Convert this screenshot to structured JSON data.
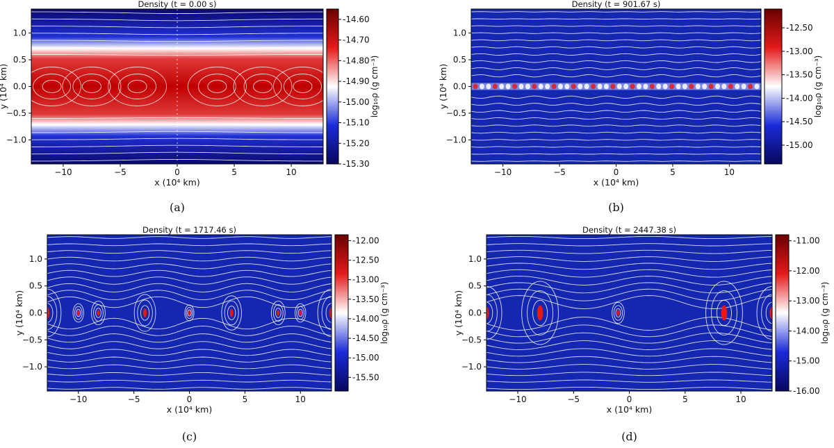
{
  "chart_data": [
    {
      "type": "heatmap",
      "caption": "(a)",
      "title": "Density (t = 0.00 s)",
      "xlabel": "x (10⁴ km)",
      "ylabel": "y (10⁴ km)",
      "colorbar_label": "log₁₀ρ (g cm⁻³)",
      "xlim": [
        -12.8,
        12.8
      ],
      "ylim": [
        -1.45,
        1.45
      ],
      "xticks": [
        "−10",
        "−5",
        "0",
        "5",
        "10"
      ],
      "xtick_values": [
        -10,
        -5,
        0,
        5,
        10
      ],
      "yticks": [
        "1.0",
        "0.5",
        "0.0",
        "−0.5",
        "−1.0"
      ],
      "ytick_values": [
        1.0,
        0.5,
        0.0,
        -0.5,
        -1.0
      ],
      "colorbar_range": [
        -15.3,
        -14.55
      ],
      "colorbar_ticks": [
        "-14.60",
        "-14.70",
        "-14.80",
        "-14.90",
        "-15.00",
        "-15.10",
        "-15.20",
        "-15.30"
      ],
      "colorbar_tick_values": [
        -14.6,
        -14.7,
        -14.8,
        -14.9,
        -15.0,
        -15.1,
        -15.2,
        -15.3
      ],
      "colormap": [
        "#08085e",
        "#1a2bd8",
        "#ffffff",
        "#e41a1a",
        "#6b0000"
      ],
      "streamline_color": "#ffffff"
    },
    {
      "type": "heatmap",
      "caption": "(b)",
      "title": "Density (t = 901.67 s)",
      "xlabel": "x (10⁴ km)",
      "ylabel": "y (10⁴ km)",
      "colorbar_label": "log₁₀ρ (g cm⁻³)",
      "xlim": [
        -12.8,
        12.8
      ],
      "ylim": [
        -1.45,
        1.45
      ],
      "xticks": [
        "−10",
        "−5",
        "0",
        "5",
        "10"
      ],
      "xtick_values": [
        -10,
        -5,
        0,
        5,
        10
      ],
      "yticks": [
        "1.0",
        "0.5",
        "0.0",
        "−0.5",
        "−1.0"
      ],
      "ytick_values": [
        1.0,
        0.5,
        0.0,
        -0.5,
        -1.0
      ],
      "colorbar_range": [
        -15.4,
        -12.1
      ],
      "colorbar_ticks": [
        "-12.50",
        "-13.00",
        "-13.50",
        "-14.00",
        "-14.50",
        "-15.00"
      ],
      "colorbar_tick_values": [
        -12.5,
        -13.0,
        -13.5,
        -14.0,
        -14.5,
        -15.0
      ],
      "colormap": [
        "#08085e",
        "#1a2bd8",
        "#ffffff",
        "#e41a1a",
        "#6b0000"
      ],
      "streamline_color": "#ffffff"
    },
    {
      "type": "heatmap",
      "caption": "(c)",
      "title": "Density (t = 1717.46 s)",
      "xlabel": "x (10⁴ km)",
      "ylabel": "y (10⁴ km)",
      "colorbar_label": "log₁₀ρ (g cm⁻³)",
      "xlim": [
        -12.8,
        12.8
      ],
      "ylim": [
        -1.45,
        1.45
      ],
      "xticks": [
        "−10",
        "−5",
        "0",
        "5",
        "10"
      ],
      "xtick_values": [
        -10,
        -5,
        0,
        5,
        10
      ],
      "yticks": [
        "1.0",
        "0.5",
        "0.0",
        "−0.5",
        "−1.0"
      ],
      "ytick_values": [
        1.0,
        0.5,
        0.0,
        -0.5,
        -1.0
      ],
      "colorbar_range": [
        -15.85,
        -11.85
      ],
      "colorbar_ticks": [
        "-12.00",
        "-12.50",
        "-13.00",
        "-13.50",
        "-14.00",
        "-14.50",
        "-15.00",
        "-15.50"
      ],
      "colorbar_tick_values": [
        -12.0,
        -12.5,
        -13.0,
        -13.5,
        -14.0,
        -14.5,
        -15.0,
        -15.5
      ],
      "colormap": [
        "#08085e",
        "#1a2bd8",
        "#ffffff",
        "#e41a1a",
        "#6b0000"
      ],
      "streamline_color": "#ffffff"
    },
    {
      "type": "heatmap",
      "caption": "(d)",
      "title": "Density (t = 2447.38 s)",
      "xlabel": "x (10⁴ km)",
      "ylabel": "y (10⁴ km)",
      "colorbar_label": "log₁₀ρ (g cm⁻³)",
      "xlim": [
        -12.8,
        12.8
      ],
      "ylim": [
        -1.45,
        1.45
      ],
      "xticks": [
        "−10",
        "−5",
        "0",
        "5",
        "10"
      ],
      "xtick_values": [
        -10,
        -5,
        0,
        5,
        10
      ],
      "yticks": [
        "1.0",
        "0.5",
        "0.0",
        "−0.5",
        "−1.0"
      ],
      "ytick_values": [
        1.0,
        0.5,
        0.0,
        -0.5,
        -1.0
      ],
      "colorbar_range": [
        -16.0,
        -10.8
      ],
      "colorbar_ticks": [
        "-11.00",
        "-12.00",
        "-13.00",
        "-14.00",
        "-15.00",
        "-16.00"
      ],
      "colorbar_tick_values": [
        -11.0,
        -12.0,
        -13.0,
        -14.0,
        -15.0,
        -16.0
      ],
      "colormap": [
        "#08085e",
        "#1a2bd8",
        "#ffffff",
        "#e41a1a",
        "#6b0000"
      ],
      "streamline_color": "#ffffff"
    }
  ]
}
